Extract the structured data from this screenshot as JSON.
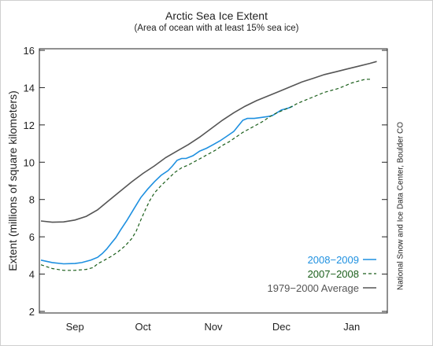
{
  "chart_data": {
    "type": "line",
    "title": "Arctic Sea Ice Extent",
    "subtitle": "(Area of ocean with at least 15% sea ice)",
    "xlabel": "",
    "ylabel": "Extent (millions of square kilometers)",
    "ylim": [
      2,
      16
    ],
    "yticks": [
      2,
      4,
      6,
      8,
      10,
      12,
      14,
      16
    ],
    "xlim": [
      0,
      152
    ],
    "xticks": [
      {
        "label": "Sep",
        "x": 15
      },
      {
        "label": "Oct",
        "x": 45
      },
      {
        "label": "Nov",
        "x": 76
      },
      {
        "label": "Dec",
        "x": 106
      },
      {
        "label": "Jan",
        "x": 137
      }
    ],
    "grid": false,
    "legend_position": "bottom-right",
    "series": [
      {
        "name": "2008−2009",
        "color": "#1e90e0",
        "dash": "solid",
        "points": [
          [
            0,
            4.75
          ],
          [
            5,
            4.62
          ],
          [
            10,
            4.55
          ],
          [
            15,
            4.57
          ],
          [
            18,
            4.62
          ],
          [
            22,
            4.75
          ],
          [
            25,
            4.9
          ],
          [
            27,
            5.1
          ],
          [
            29,
            5.35
          ],
          [
            31,
            5.65
          ],
          [
            33,
            5.95
          ],
          [
            35,
            6.35
          ],
          [
            38,
            6.9
          ],
          [
            41,
            7.5
          ],
          [
            44,
            8.1
          ],
          [
            47,
            8.55
          ],
          [
            50,
            8.95
          ],
          [
            53,
            9.3
          ],
          [
            56,
            9.55
          ],
          [
            58,
            9.8
          ],
          [
            60,
            10.1
          ],
          [
            62,
            10.2
          ],
          [
            64,
            10.2
          ],
          [
            67,
            10.35
          ],
          [
            70,
            10.6
          ],
          [
            73,
            10.75
          ],
          [
            76,
            10.95
          ],
          [
            79,
            11.15
          ],
          [
            82,
            11.4
          ],
          [
            85,
            11.65
          ],
          [
            87,
            11.95
          ],
          [
            89,
            12.25
          ],
          [
            91,
            12.35
          ],
          [
            94,
            12.35
          ],
          [
            97,
            12.4
          ],
          [
            100,
            12.45
          ],
          [
            102,
            12.5
          ],
          [
            104,
            12.65
          ],
          [
            106,
            12.8
          ],
          [
            109,
            12.9
          ],
          [
            111,
            13.0
          ]
        ]
      },
      {
        "name": "2007−2008",
        "color": "#1a5e1a",
        "dash": "dashed",
        "points": [
          [
            0,
            4.5
          ],
          [
            5,
            4.3
          ],
          [
            10,
            4.2
          ],
          [
            15,
            4.2
          ],
          [
            20,
            4.25
          ],
          [
            23,
            4.35
          ],
          [
            25,
            4.55
          ],
          [
            28,
            4.75
          ],
          [
            31,
            4.95
          ],
          [
            34,
            5.2
          ],
          [
            37,
            5.5
          ],
          [
            40,
            5.9
          ],
          [
            42,
            6.3
          ],
          [
            44,
            6.9
          ],
          [
            46,
            7.45
          ],
          [
            48,
            7.95
          ],
          [
            50,
            8.35
          ],
          [
            53,
            8.75
          ],
          [
            56,
            9.1
          ],
          [
            59,
            9.45
          ],
          [
            62,
            9.7
          ],
          [
            65,
            9.85
          ],
          [
            68,
            10.05
          ],
          [
            71,
            10.25
          ],
          [
            74,
            10.45
          ],
          [
            77,
            10.65
          ],
          [
            80,
            10.9
          ],
          [
            83,
            11.1
          ],
          [
            86,
            11.35
          ],
          [
            89,
            11.6
          ],
          [
            92,
            11.8
          ],
          [
            95,
            12.0
          ],
          [
            98,
            12.2
          ],
          [
            101,
            12.45
          ],
          [
            104,
            12.65
          ],
          [
            107,
            12.8
          ],
          [
            110,
            12.95
          ],
          [
            113,
            13.15
          ],
          [
            116,
            13.3
          ],
          [
            119,
            13.45
          ],
          [
            122,
            13.6
          ],
          [
            125,
            13.75
          ],
          [
            128,
            13.85
          ],
          [
            131,
            13.95
          ],
          [
            134,
            14.1
          ],
          [
            137,
            14.25
          ],
          [
            140,
            14.35
          ],
          [
            143,
            14.45
          ],
          [
            146,
            14.45
          ]
        ]
      },
      {
        "name": "1979−2000 Average",
        "color": "#555555",
        "dash": "solid",
        "points": [
          [
            0,
            6.85
          ],
          [
            5,
            6.78
          ],
          [
            10,
            6.8
          ],
          [
            15,
            6.9
          ],
          [
            20,
            7.1
          ],
          [
            25,
            7.45
          ],
          [
            30,
            7.95
          ],
          [
            35,
            8.45
          ],
          [
            40,
            8.95
          ],
          [
            45,
            9.4
          ],
          [
            50,
            9.8
          ],
          [
            55,
            10.25
          ],
          [
            60,
            10.6
          ],
          [
            65,
            10.95
          ],
          [
            70,
            11.35
          ],
          [
            75,
            11.8
          ],
          [
            80,
            12.25
          ],
          [
            85,
            12.65
          ],
          [
            90,
            13.0
          ],
          [
            95,
            13.3
          ],
          [
            100,
            13.55
          ],
          [
            105,
            13.8
          ],
          [
            110,
            14.05
          ],
          [
            115,
            14.3
          ],
          [
            120,
            14.5
          ],
          [
            125,
            14.7
          ],
          [
            130,
            14.85
          ],
          [
            135,
            15.0
          ],
          [
            140,
            15.15
          ],
          [
            145,
            15.3
          ],
          [
            148,
            15.4
          ]
        ]
      }
    ],
    "annotations": [
      "National Snow and Ice Data Center, Boulder CO"
    ]
  }
}
